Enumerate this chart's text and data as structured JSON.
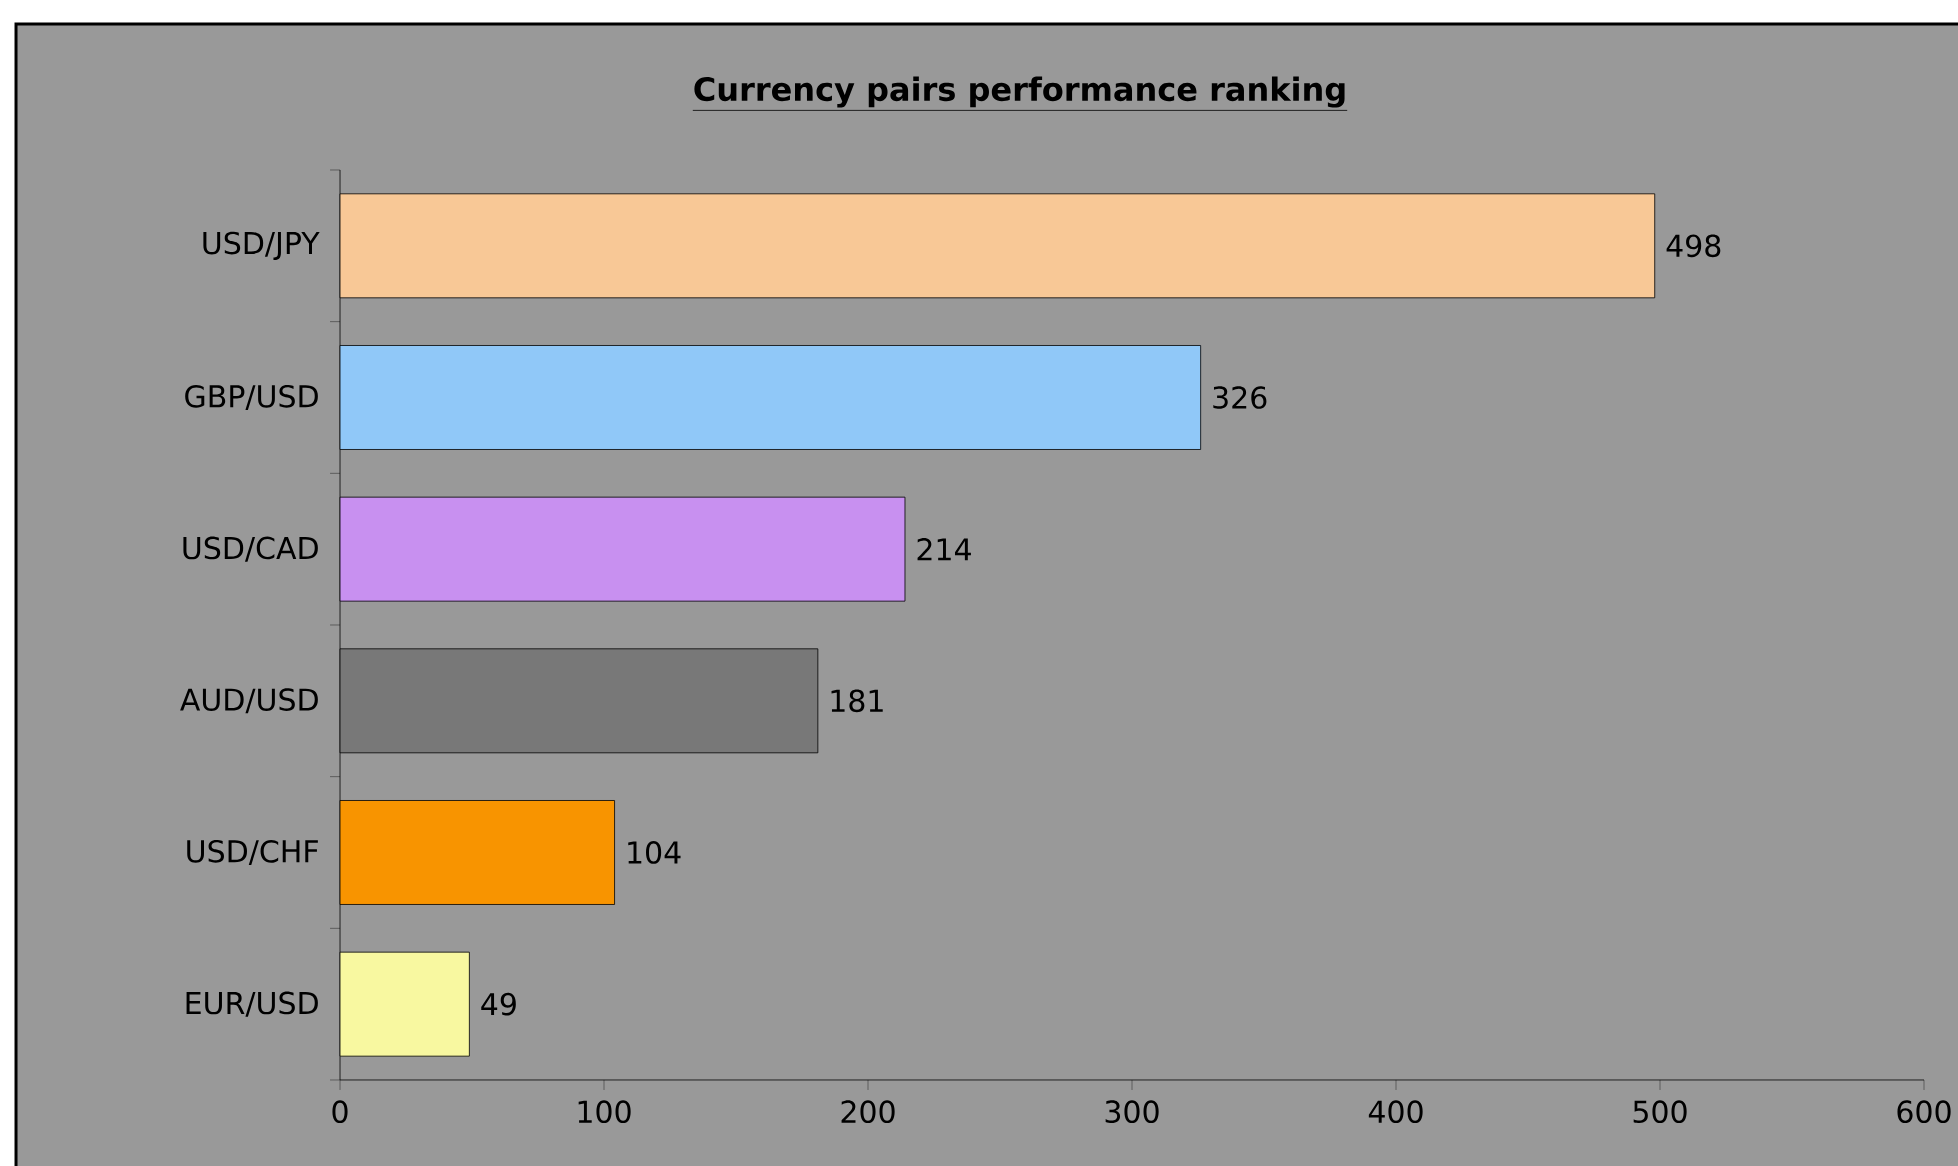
{
  "chart_data": {
    "type": "bar",
    "orientation": "horizontal",
    "title": "Currency pairs performance ranking",
    "categories": [
      "USD/JPY",
      "GBP/USD",
      "USD/CAD",
      "AUD/USD",
      "USD/CHF",
      "EUR/USD"
    ],
    "values": [
      498,
      326,
      214,
      181,
      104,
      49
    ],
    "colors": [
      "#f8c896",
      "#90c8f8",
      "#c890f0",
      "#787878",
      "#f89400",
      "#f8f8a0"
    ],
    "xlim": [
      0,
      600
    ],
    "xticks": [
      0,
      100,
      200,
      300,
      400,
      500,
      600
    ],
    "data_labels": true
  }
}
